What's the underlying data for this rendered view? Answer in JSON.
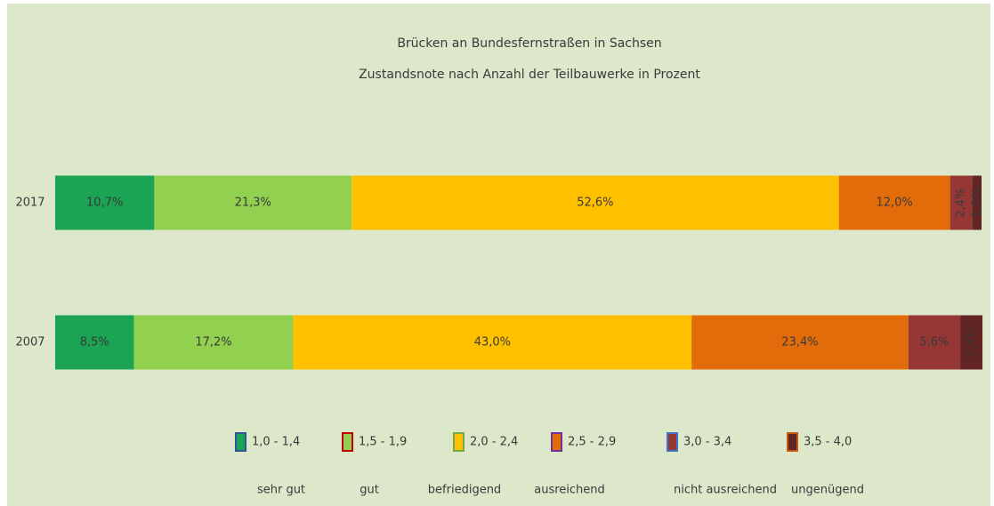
{
  "chart_data": {
    "type": "stacked-bar-horizontal",
    "title": "Brücken an Bundesfernstraßen in Sachsen",
    "subtitle": "Zustandsnote nach Anzahl der Teilbauwerke in Prozent",
    "categories": [
      "2017",
      "2007"
    ],
    "xlim": [
      0,
      100
    ],
    "series": [
      {
        "name": "1,0 - 1,4",
        "rating": "sehr gut",
        "color": "#1aa454",
        "values": [
          10.7,
          8.5
        ],
        "value_labels": [
          "10,7%",
          "8,5%"
        ]
      },
      {
        "name": "1,5 - 1,9",
        "rating": "gut",
        "color": "#92d050",
        "values": [
          21.3,
          17.2
        ],
        "value_labels": [
          "21,3%",
          "17,2%"
        ]
      },
      {
        "name": "2,0 - 2,4",
        "rating": "befriedigend",
        "color": "#ffc000",
        "values": [
          52.6,
          43.0
        ],
        "value_labels": [
          "52,6%",
          "43,0%"
        ]
      },
      {
        "name": "2,5 - 2,9",
        "rating": "ausreichend",
        "color": "#e36c0a",
        "values": [
          12.0,
          23.4
        ],
        "value_labels": [
          "12,0%",
          "23,4%"
        ]
      },
      {
        "name": "3,0 - 3,4",
        "rating": "nicht ausreichend",
        "color": "#953735",
        "values": [
          2.4,
          5.6
        ],
        "value_labels": [
          "2,4%",
          "5,6%"
        ]
      },
      {
        "name": "3,5 - 4,0",
        "rating": "ungenügend",
        "color": "#632523",
        "values": [
          1.0,
          2.4
        ],
        "value_labels": [
          "1,0%",
          "2,4%"
        ]
      }
    ]
  }
}
